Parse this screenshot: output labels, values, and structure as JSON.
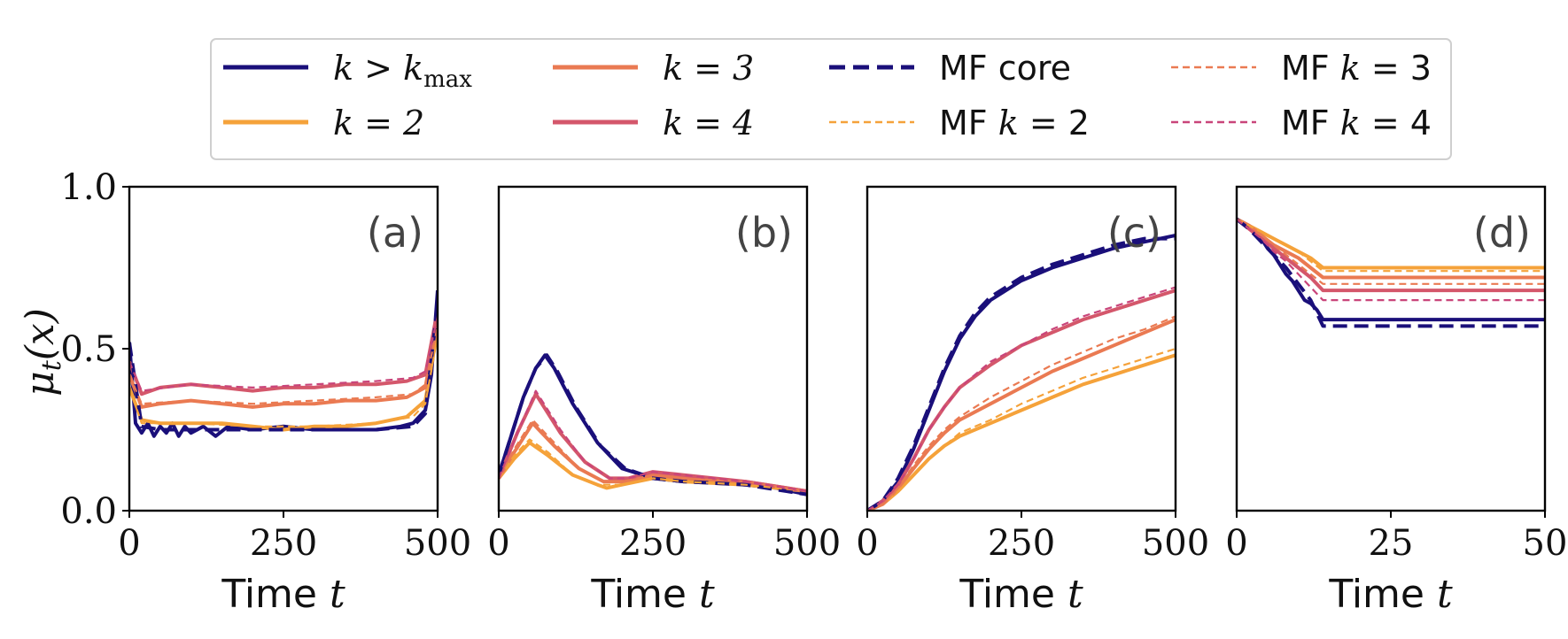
{
  "legend": {
    "entries": [
      {
        "label": "k > k_max",
        "color": "#1a0f7a",
        "style": "solid"
      },
      {
        "label": "k = 2",
        "color": "#f5a23a",
        "style": "solid"
      },
      {
        "label": "k = 3",
        "color": "#ea7a52",
        "style": "solid"
      },
      {
        "label": "k = 4",
        "color": "#d4576b",
        "style": "solid"
      },
      {
        "label": "MF core",
        "color": "#1a0f7a",
        "style": "dashed"
      },
      {
        "label": "MF k = 2",
        "color": "#f5a23a",
        "style": "dashed"
      },
      {
        "label": "MF k = 3",
        "color": "#ea7a52",
        "style": "dashed"
      },
      {
        "label": "MF k = 4",
        "color": "#c9457a",
        "style": "dashed"
      }
    ]
  },
  "chart_data": [
    {
      "type": "line",
      "panel_label": "(a)",
      "xlabel": "Time t",
      "ylabel": "μt(x)",
      "xlim": [
        0,
        500
      ],
      "ylim": [
        0,
        1
      ],
      "xticks": [
        "0",
        "250",
        "500"
      ],
      "yticks": [
        "0.0",
        "0.5",
        "1.0"
      ],
      "series": [
        {
          "name": "k > k_max",
          "style": "solid",
          "x": [
            0,
            10,
            20,
            30,
            40,
            50,
            60,
            70,
            80,
            90,
            100,
            120,
            140,
            160,
            200,
            250,
            300,
            350,
            400,
            440,
            460,
            480,
            490,
            500
          ],
          "y": [
            0.52,
            0.27,
            0.24,
            0.27,
            0.23,
            0.26,
            0.24,
            0.27,
            0.23,
            0.26,
            0.24,
            0.26,
            0.23,
            0.26,
            0.25,
            0.26,
            0.25,
            0.25,
            0.25,
            0.26,
            0.27,
            0.31,
            0.42,
            0.68
          ]
        },
        {
          "name": "k = 2",
          "style": "solid",
          "x": [
            0,
            20,
            50,
            100,
            150,
            200,
            250,
            300,
            350,
            400,
            450,
            480,
            500
          ],
          "y": [
            0.38,
            0.28,
            0.27,
            0.27,
            0.27,
            0.26,
            0.25,
            0.26,
            0.26,
            0.27,
            0.29,
            0.34,
            0.56
          ]
        },
        {
          "name": "k = 3",
          "style": "solid",
          "x": [
            0,
            20,
            50,
            100,
            150,
            200,
            250,
            300,
            350,
            400,
            450,
            480,
            500
          ],
          "y": [
            0.42,
            0.32,
            0.33,
            0.34,
            0.33,
            0.32,
            0.33,
            0.33,
            0.34,
            0.34,
            0.35,
            0.38,
            0.59
          ]
        },
        {
          "name": "k = 4",
          "style": "solid",
          "x": [
            0,
            20,
            50,
            100,
            150,
            200,
            250,
            300,
            350,
            400,
            450,
            480,
            500
          ],
          "y": [
            0.46,
            0.36,
            0.38,
            0.39,
            0.38,
            0.37,
            0.38,
            0.38,
            0.39,
            0.39,
            0.4,
            0.42,
            0.62
          ]
        },
        {
          "name": "MF core",
          "style": "dashed",
          "x": [
            0,
            20,
            50,
            100,
            200,
            300,
            400,
            460,
            480,
            500
          ],
          "y": [
            0.52,
            0.26,
            0.25,
            0.25,
            0.25,
            0.25,
            0.25,
            0.26,
            0.3,
            0.64
          ]
        },
        {
          "name": "MF k = 2",
          "style": "dashed",
          "x": [
            0,
            20,
            100,
            200,
            300,
            400,
            460,
            480,
            500
          ],
          "y": [
            0.38,
            0.27,
            0.27,
            0.26,
            0.26,
            0.27,
            0.29,
            0.33,
            0.54
          ]
        },
        {
          "name": "MF k = 3",
          "style": "dashed",
          "x": [
            0,
            20,
            100,
            200,
            300,
            400,
            460,
            480,
            500
          ],
          "y": [
            0.42,
            0.33,
            0.34,
            0.33,
            0.34,
            0.35,
            0.36,
            0.39,
            0.57
          ]
        },
        {
          "name": "MF k = 4",
          "style": "dashed",
          "x": [
            0,
            20,
            100,
            200,
            300,
            400,
            460,
            480,
            500
          ],
          "y": [
            0.46,
            0.37,
            0.39,
            0.38,
            0.39,
            0.4,
            0.41,
            0.43,
            0.6
          ]
        }
      ]
    },
    {
      "type": "line",
      "panel_label": "(b)",
      "xlabel": "Time t",
      "xlim": [
        0,
        500
      ],
      "ylim": [
        0,
        1
      ],
      "xticks": [
        "0",
        "250",
        "500"
      ],
      "series": [
        {
          "name": "k > k_max",
          "style": "solid",
          "x": [
            0,
            20,
            40,
            60,
            75,
            90,
            120,
            160,
            200,
            250,
            300,
            350,
            400,
            450,
            500
          ],
          "y": [
            0.11,
            0.23,
            0.35,
            0.44,
            0.48,
            0.44,
            0.33,
            0.21,
            0.13,
            0.1,
            0.09,
            0.09,
            0.08,
            0.07,
            0.05
          ]
        },
        {
          "name": "k = 2",
          "style": "solid",
          "x": [
            0,
            25,
            50,
            80,
            120,
            160,
            175,
            200,
            250,
            300,
            400,
            500
          ],
          "y": [
            0.1,
            0.16,
            0.21,
            0.17,
            0.11,
            0.08,
            0.07,
            0.08,
            0.1,
            0.09,
            0.08,
            0.06
          ]
        },
        {
          "name": "k = 3",
          "style": "solid",
          "x": [
            0,
            25,
            55,
            90,
            130,
            170,
            200,
            250,
            300,
            400,
            500
          ],
          "y": [
            0.1,
            0.18,
            0.27,
            0.2,
            0.13,
            0.09,
            0.09,
            0.11,
            0.1,
            0.09,
            0.06
          ]
        },
        {
          "name": "k = 4",
          "style": "solid",
          "x": [
            0,
            30,
            60,
            100,
            140,
            180,
            210,
            250,
            300,
            400,
            500
          ],
          "y": [
            0.1,
            0.24,
            0.36,
            0.24,
            0.15,
            0.1,
            0.1,
            0.12,
            0.11,
            0.09,
            0.06
          ]
        },
        {
          "name": "MF core",
          "style": "dashed",
          "x": [
            0,
            20,
            40,
            60,
            78,
            95,
            125,
            165,
            205,
            250,
            300,
            400,
            500
          ],
          "y": [
            0.11,
            0.23,
            0.35,
            0.44,
            0.48,
            0.43,
            0.32,
            0.2,
            0.13,
            0.1,
            0.09,
            0.08,
            0.05
          ]
        },
        {
          "name": "MF k = 2",
          "style": "dashed",
          "x": [
            0,
            25,
            50,
            80,
            120,
            160,
            200,
            250,
            300,
            400,
            500
          ],
          "y": [
            0.1,
            0.17,
            0.22,
            0.18,
            0.11,
            0.08,
            0.08,
            0.1,
            0.09,
            0.08,
            0.06
          ]
        },
        {
          "name": "MF k = 3",
          "style": "dashed",
          "x": [
            0,
            25,
            55,
            90,
            130,
            170,
            200,
            250,
            300,
            400,
            500
          ],
          "y": [
            0.1,
            0.19,
            0.28,
            0.21,
            0.13,
            0.09,
            0.09,
            0.11,
            0.1,
            0.09,
            0.06
          ]
        },
        {
          "name": "MF k = 4",
          "style": "dashed",
          "x": [
            0,
            30,
            60,
            100,
            140,
            180,
            210,
            250,
            300,
            400,
            500
          ],
          "y": [
            0.1,
            0.24,
            0.37,
            0.25,
            0.15,
            0.1,
            0.1,
            0.12,
            0.11,
            0.09,
            0.06
          ]
        }
      ]
    },
    {
      "type": "line",
      "panel_label": "(c)",
      "xlabel": "Time t",
      "xlim": [
        0,
        500
      ],
      "ylim": [
        0,
        1
      ],
      "xticks": [
        "0",
        "250",
        "500"
      ],
      "series": [
        {
          "name": "k > k_max",
          "style": "solid",
          "x": [
            0,
            25,
            50,
            75,
            100,
            125,
            150,
            175,
            200,
            250,
            300,
            350,
            400,
            450,
            500
          ],
          "y": [
            0.0,
            0.03,
            0.09,
            0.19,
            0.31,
            0.43,
            0.53,
            0.6,
            0.65,
            0.71,
            0.75,
            0.78,
            0.81,
            0.83,
            0.85
          ]
        },
        {
          "name": "k = 2",
          "style": "solid",
          "x": [
            0,
            25,
            50,
            75,
            100,
            125,
            150,
            200,
            250,
            300,
            350,
            400,
            450,
            500
          ],
          "y": [
            0.0,
            0.02,
            0.06,
            0.11,
            0.16,
            0.2,
            0.23,
            0.27,
            0.31,
            0.35,
            0.39,
            0.42,
            0.45,
            0.48
          ]
        },
        {
          "name": "k = 3",
          "style": "solid",
          "x": [
            0,
            25,
            50,
            75,
            100,
            125,
            150,
            200,
            250,
            300,
            350,
            400,
            450,
            500
          ],
          "y": [
            0.0,
            0.02,
            0.07,
            0.13,
            0.19,
            0.24,
            0.28,
            0.33,
            0.38,
            0.43,
            0.47,
            0.51,
            0.55,
            0.59
          ]
        },
        {
          "name": "k = 4",
          "style": "solid",
          "x": [
            0,
            25,
            50,
            75,
            100,
            125,
            150,
            200,
            250,
            300,
            350,
            400,
            450,
            500
          ],
          "y": [
            0.0,
            0.03,
            0.08,
            0.16,
            0.25,
            0.32,
            0.38,
            0.45,
            0.51,
            0.55,
            0.59,
            0.62,
            0.65,
            0.68
          ]
        },
        {
          "name": "MF core",
          "style": "dashed",
          "x": [
            0,
            25,
            50,
            75,
            100,
            125,
            150,
            175,
            200,
            250,
            300,
            350,
            400,
            450,
            500
          ],
          "y": [
            0.0,
            0.03,
            0.1,
            0.2,
            0.32,
            0.44,
            0.54,
            0.61,
            0.66,
            0.72,
            0.76,
            0.79,
            0.82,
            0.84,
            0.84
          ]
        },
        {
          "name": "MF k = 2",
          "style": "dashed",
          "x": [
            0,
            25,
            50,
            75,
            100,
            125,
            150,
            200,
            250,
            300,
            350,
            400,
            450,
            500
          ],
          "y": [
            0.0,
            0.02,
            0.06,
            0.11,
            0.16,
            0.2,
            0.24,
            0.28,
            0.33,
            0.37,
            0.41,
            0.44,
            0.47,
            0.5
          ]
        },
        {
          "name": "MF k = 3",
          "style": "dashed",
          "x": [
            0,
            25,
            50,
            75,
            100,
            125,
            150,
            200,
            250,
            300,
            350,
            400,
            450,
            500
          ],
          "y": [
            0.0,
            0.02,
            0.07,
            0.14,
            0.2,
            0.25,
            0.29,
            0.35,
            0.4,
            0.45,
            0.49,
            0.53,
            0.56,
            0.6
          ]
        },
        {
          "name": "MF k = 4",
          "style": "dashed",
          "x": [
            0,
            25,
            50,
            75,
            100,
            125,
            150,
            200,
            250,
            300,
            350,
            400,
            450,
            500
          ],
          "y": [
            0.0,
            0.03,
            0.08,
            0.16,
            0.25,
            0.32,
            0.38,
            0.46,
            0.51,
            0.56,
            0.6,
            0.63,
            0.66,
            0.69
          ]
        }
      ]
    },
    {
      "type": "line",
      "panel_label": "(d)",
      "xlabel": "Time t",
      "xlim": [
        0,
        50
      ],
      "ylim": [
        0,
        1
      ],
      "xticks": [
        "0",
        "25",
        "50"
      ],
      "series": [
        {
          "name": "k > k_max",
          "style": "solid",
          "x": [
            0,
            1,
            2,
            3,
            4,
            5,
            6,
            7,
            8,
            9,
            10,
            11,
            12,
            13,
            14,
            50
          ],
          "y": [
            0.9,
            0.89,
            0.88,
            0.86,
            0.84,
            0.81,
            0.79,
            0.76,
            0.73,
            0.71,
            0.68,
            0.65,
            0.64,
            0.62,
            0.59,
            0.59
          ]
        },
        {
          "name": "k = 2",
          "style": "solid",
          "x": [
            0,
            2,
            4,
            6,
            8,
            10,
            12,
            14,
            50
          ],
          "y": [
            0.9,
            0.88,
            0.86,
            0.84,
            0.82,
            0.8,
            0.78,
            0.75,
            0.75
          ]
        },
        {
          "name": "k = 3",
          "style": "solid",
          "x": [
            0,
            2,
            4,
            6,
            8,
            10,
            12,
            14,
            50
          ],
          "y": [
            0.9,
            0.88,
            0.85,
            0.82,
            0.8,
            0.78,
            0.75,
            0.72,
            0.72
          ]
        },
        {
          "name": "k = 4",
          "style": "solid",
          "x": [
            0,
            2,
            4,
            6,
            8,
            10,
            12,
            14,
            50
          ],
          "y": [
            0.9,
            0.87,
            0.84,
            0.81,
            0.78,
            0.75,
            0.72,
            0.68,
            0.68
          ]
        },
        {
          "name": "MF core",
          "style": "dashed",
          "x": [
            0,
            2,
            4,
            6,
            8,
            10,
            12,
            14,
            50
          ],
          "y": [
            0.9,
            0.87,
            0.83,
            0.79,
            0.75,
            0.7,
            0.65,
            0.57,
            0.57
          ]
        },
        {
          "name": "MF k = 2",
          "style": "dashed",
          "x": [
            0,
            2,
            4,
            6,
            8,
            10,
            12,
            14,
            50
          ],
          "y": [
            0.9,
            0.88,
            0.86,
            0.84,
            0.82,
            0.8,
            0.77,
            0.74,
            0.74
          ]
        },
        {
          "name": "MF k = 3",
          "style": "dashed",
          "x": [
            0,
            2,
            4,
            6,
            8,
            10,
            12,
            14,
            50
          ],
          "y": [
            0.9,
            0.87,
            0.85,
            0.82,
            0.79,
            0.76,
            0.73,
            0.7,
            0.7
          ]
        },
        {
          "name": "MF k = 4",
          "style": "dashed",
          "x": [
            0,
            2,
            4,
            6,
            8,
            10,
            12,
            14,
            50
          ],
          "y": [
            0.9,
            0.87,
            0.84,
            0.8,
            0.77,
            0.73,
            0.69,
            0.65,
            0.65
          ]
        }
      ]
    }
  ]
}
